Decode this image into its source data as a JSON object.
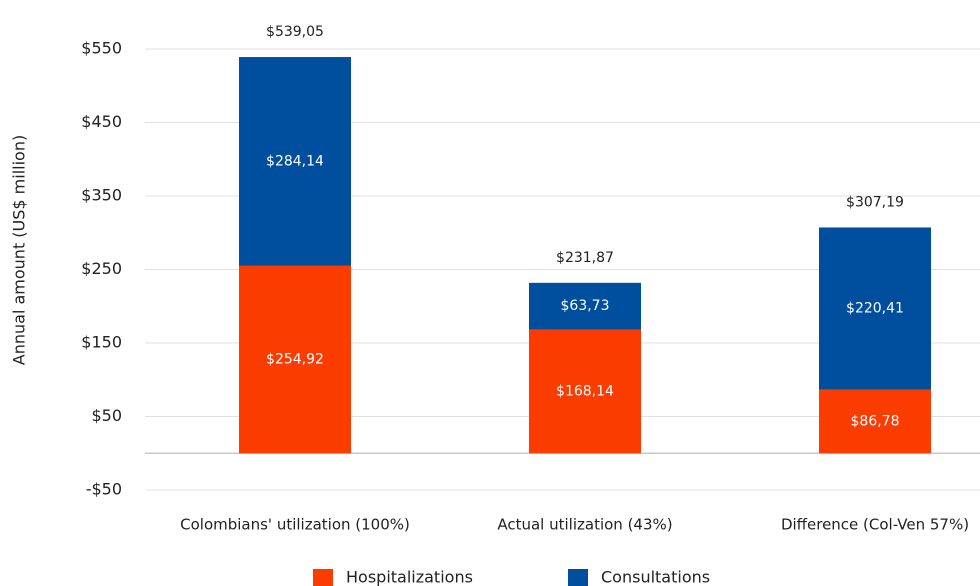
{
  "chart_data": {
    "type": "stacked_bar",
    "y_label": "Annual amount (US$ million)",
    "categories": [
      "Colombians' utilization (100%)",
      "Actual utilization (43%)",
      "Difference (Col-Ven 57%)"
    ],
    "series": [
      {
        "name": "Hospitalizations",
        "color": "#fa3c00",
        "values": [
          254.92,
          168.14,
          86.78
        ],
        "value_labels": [
          "$254,92",
          "$168,14",
          "$86,78"
        ]
      },
      {
        "name": "Consultations",
        "color": "#004f9f",
        "values": [
          284.14,
          63.73,
          220.41
        ],
        "value_labels": [
          "$284,14",
          "$63,73",
          "$220,41"
        ]
      }
    ],
    "totals": [
      539.05,
      231.87,
      307.19
    ],
    "total_labels": [
      "$539,05",
      "$231,87",
      "$307,19"
    ],
    "ylim": [
      -50,
      550
    ],
    "yticks": [
      {
        "value": -50,
        "label": "-$50"
      },
      {
        "value": 50,
        "label": "$50"
      },
      {
        "value": 150,
        "label": "$150"
      },
      {
        "value": 250,
        "label": "$250"
      },
      {
        "value": 350,
        "label": "$350"
      },
      {
        "value": 450,
        "label": "$450"
      },
      {
        "value": 550,
        "label": "$550"
      }
    ],
    "grid": true,
    "legend": "bottom"
  }
}
